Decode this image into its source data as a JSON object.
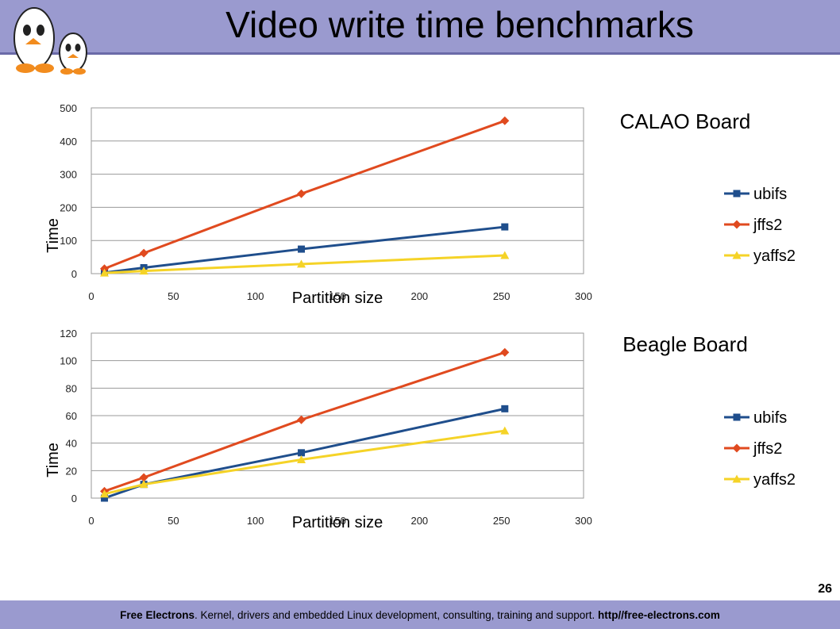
{
  "slide": {
    "title": "Video write time benchmarks",
    "page_number": "26",
    "footer": {
      "brand": "Free Electrons",
      "text": ". Kernel, drivers and embedded Linux development, consulting, training and support. ",
      "url": "http//free-electrons.com"
    }
  },
  "colors": {
    "ubifs": "#1f4e8c",
    "jffs2": "#e04a1f",
    "yaffs2": "#f5d327",
    "header": "#9a9acf"
  },
  "chart_data": [
    {
      "type": "line",
      "title": "CALAO Board",
      "xlabel": "Partition size",
      "ylabel": "Time",
      "xlim": [
        0,
        300
      ],
      "ylim": [
        0,
        500
      ],
      "xticks": [
        0,
        50,
        100,
        150,
        200,
        250,
        300
      ],
      "yticks": [
        0,
        100,
        200,
        300,
        400,
        500
      ],
      "grid": true,
      "legend": "right",
      "x": [
        8,
        32,
        128,
        252
      ],
      "series": [
        {
          "name": "ubifs",
          "marker": "square",
          "values": [
            3,
            18,
            74,
            141
          ]
        },
        {
          "name": "jffs2",
          "marker": "diamond",
          "values": [
            15,
            62,
            241,
            461
          ]
        },
        {
          "name": "yaffs2",
          "marker": "triangle",
          "values": [
            2,
            8,
            29,
            55
          ]
        }
      ]
    },
    {
      "type": "line",
      "title": "Beagle Board",
      "xlabel": "Partition size",
      "ylabel": "Time",
      "xlim": [
        0,
        300
      ],
      "ylim": [
        0,
        120
      ],
      "xticks": [
        0,
        50,
        100,
        150,
        200,
        250,
        300
      ],
      "yticks": [
        0,
        20,
        40,
        60,
        80,
        100,
        120
      ],
      "grid": true,
      "legend": "right",
      "x": [
        8,
        32,
        128,
        252
      ],
      "series": [
        {
          "name": "ubifs",
          "marker": "square",
          "values": [
            0,
            10,
            33,
            65
          ]
        },
        {
          "name": "jffs2",
          "marker": "diamond",
          "values": [
            5,
            15,
            57,
            106
          ]
        },
        {
          "name": "yaffs2",
          "marker": "triangle",
          "values": [
            3,
            10,
            28,
            49
          ]
        }
      ]
    }
  ]
}
